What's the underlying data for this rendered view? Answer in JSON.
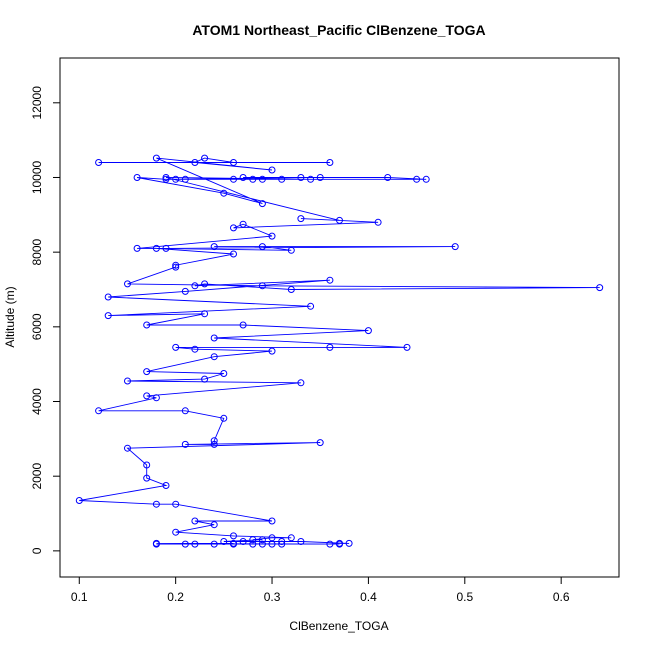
{
  "chart_data": {
    "type": "line",
    "title": "ATOM1 Northeast_Pacific ClBenzene_TOGA",
    "xlabel": "ClBenzene_TOGA",
    "ylabel": "Altitude (m)",
    "xlim": [
      0.08,
      0.66
    ],
    "ylim": [
      -700,
      13200
    ],
    "x_ticks": [
      0.1,
      0.2,
      0.3,
      0.4,
      0.5,
      0.6
    ],
    "x_tick_labels": [
      "0.1",
      "0.2",
      "0.3",
      "0.4",
      "0.5",
      "0.6"
    ],
    "y_ticks": [
      0,
      2000,
      4000,
      6000,
      8000,
      10000,
      12000
    ],
    "y_tick_labels": [
      "0",
      "2000",
      "4000",
      "6000",
      "8000",
      "10000",
      "12000"
    ],
    "grid": false,
    "markers": "open-circle",
    "series": [
      {
        "color": "#0000ff",
        "points": [
          [
            0.12,
            10400
          ],
          [
            0.36,
            10400
          ],
          [
            0.26,
            10400
          ],
          [
            0.23,
            10520
          ],
          [
            0.22,
            10400
          ],
          [
            0.3,
            10200
          ],
          [
            0.18,
            10520
          ],
          [
            0.29,
            9300
          ],
          [
            0.25,
            9580
          ],
          [
            0.16,
            10000
          ],
          [
            0.19,
            9950
          ],
          [
            0.45,
            9950
          ],
          [
            0.46,
            9950
          ],
          [
            0.42,
            10000
          ],
          [
            0.27,
            10000
          ],
          [
            0.35,
            10000
          ],
          [
            0.33,
            10000
          ],
          [
            0.2,
            9950
          ],
          [
            0.21,
            9950
          ],
          [
            0.26,
            9950
          ],
          [
            0.28,
            9950
          ],
          [
            0.29,
            9950
          ],
          [
            0.31,
            9950
          ],
          [
            0.34,
            9950
          ],
          [
            0.19,
            10000
          ],
          [
            0.37,
            8850
          ],
          [
            0.33,
            8900
          ],
          [
            0.41,
            8800
          ],
          [
            0.26,
            8650
          ],
          [
            0.27,
            8750
          ],
          [
            0.3,
            8430
          ],
          [
            0.16,
            8100
          ],
          [
            0.19,
            8100
          ],
          [
            0.49,
            8150
          ],
          [
            0.24,
            8150
          ],
          [
            0.29,
            8150
          ],
          [
            0.32,
            8050
          ],
          [
            0.18,
            8100
          ],
          [
            0.26,
            7950
          ],
          [
            0.2,
            7650
          ],
          [
            0.2,
            7600
          ],
          [
            0.15,
            7150
          ],
          [
            0.29,
            7100
          ],
          [
            0.64,
            7050
          ],
          [
            0.32,
            7000
          ],
          [
            0.23,
            7150
          ],
          [
            0.22,
            7100
          ],
          [
            0.36,
            7250
          ],
          [
            0.21,
            6950
          ],
          [
            0.13,
            6800
          ],
          [
            0.34,
            6550
          ],
          [
            0.13,
            6300
          ],
          [
            0.23,
            6350
          ],
          [
            0.17,
            6050
          ],
          [
            0.27,
            6050
          ],
          [
            0.4,
            5900
          ],
          [
            0.24,
            5700
          ],
          [
            0.44,
            5450
          ],
          [
            0.36,
            5450
          ],
          [
            0.2,
            5450
          ],
          [
            0.22,
            5400
          ],
          [
            0.3,
            5350
          ],
          [
            0.24,
            5200
          ],
          [
            0.17,
            4800
          ],
          [
            0.25,
            4750
          ],
          [
            0.23,
            4600
          ],
          [
            0.15,
            4550
          ],
          [
            0.33,
            4500
          ],
          [
            0.17,
            4150
          ],
          [
            0.18,
            4100
          ],
          [
            0.12,
            3750
          ],
          [
            0.21,
            3750
          ],
          [
            0.25,
            3550
          ],
          [
            0.24,
            2950
          ],
          [
            0.24,
            2850
          ],
          [
            0.21,
            2850
          ],
          [
            0.35,
            2900
          ],
          [
            0.15,
            2750
          ],
          [
            0.17,
            2300
          ],
          [
            0.17,
            1950
          ],
          [
            0.19,
            1750
          ],
          [
            0.1,
            1350
          ],
          [
            0.18,
            1250
          ],
          [
            0.2,
            1250
          ],
          [
            0.3,
            800
          ],
          [
            0.22,
            800
          ],
          [
            0.24,
            700
          ],
          [
            0.2,
            500
          ],
          [
            0.26,
            400
          ],
          [
            0.32,
            350
          ],
          [
            0.3,
            350
          ],
          [
            0.28,
            300
          ],
          [
            0.29,
            300
          ],
          [
            0.25,
            250
          ],
          [
            0.27,
            250
          ],
          [
            0.31,
            250
          ],
          [
            0.33,
            250
          ],
          [
            0.38,
            200
          ],
          [
            0.37,
            200
          ],
          [
            0.36,
            180
          ],
          [
            0.18,
            180
          ],
          [
            0.21,
            180
          ],
          [
            0.22,
            180
          ],
          [
            0.24,
            180
          ],
          [
            0.26,
            180
          ],
          [
            0.28,
            180
          ],
          [
            0.29,
            180
          ],
          [
            0.3,
            180
          ],
          [
            0.31,
            180
          ],
          [
            0.37,
            180
          ],
          [
            0.18,
            200
          ],
          [
            0.26,
            200
          ]
        ]
      }
    ]
  }
}
